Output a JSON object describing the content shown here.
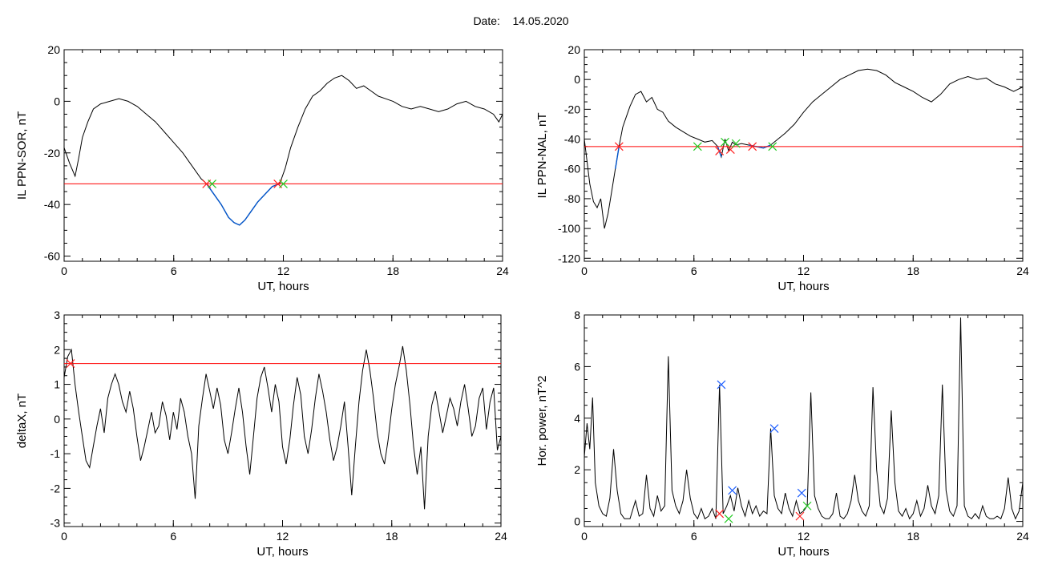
{
  "header": {
    "date_label": "Date:",
    "date_value": "14.05.2020"
  },
  "colors": {
    "trace": "#000000",
    "below_threshold": "#0055cc",
    "threshold": "#ff0000",
    "marker_red": "#ff2020",
    "marker_green": "#22cc22",
    "marker_blue": "#2060ff"
  },
  "chart_data": [
    {
      "id": "sor",
      "type": "line",
      "xlabel": "UT, hours",
      "ylabel": "IL PPN-SOR, nT",
      "xlim": [
        0,
        24
      ],
      "ylim": [
        -62,
        20
      ],
      "xticks": [
        0,
        6,
        12,
        18,
        24
      ],
      "yticks": [
        -60,
        -40,
        -20,
        0,
        20
      ],
      "threshold": -32,
      "series": [
        {
          "x": [
            0,
            0.3,
            0.6,
            0.8,
            1.0,
            1.3,
            1.6,
            2.0,
            2.5,
            3.0,
            3.5,
            4.0,
            4.5,
            5.0,
            5.5,
            6.0,
            6.5,
            7.0,
            7.5,
            7.8,
            8.2,
            8.6,
            9.0,
            9.3,
            9.6,
            9.9,
            10.2,
            10.6,
            11.0,
            11.4,
            11.8,
            12.1,
            12.4,
            12.8,
            13.2,
            13.6,
            14.0,
            14.4,
            14.8,
            15.2,
            15.6,
            16.0,
            16.4,
            16.8,
            17.2,
            17.6,
            18.0,
            18.5,
            19.0,
            19.5,
            20.0,
            20.5,
            21.0,
            21.5,
            22.0,
            22.5,
            23.0,
            23.5,
            23.8,
            24.0
          ],
          "y": [
            -18,
            -24,
            -29,
            -22,
            -14,
            -8,
            -3,
            -1,
            0,
            1,
            0,
            -2,
            -5,
            -8,
            -12,
            -16,
            -20,
            -25,
            -30,
            -32,
            -36,
            -40,
            -45,
            -47,
            -48,
            -46,
            -43,
            -39,
            -36,
            -33,
            -32,
            -26,
            -18,
            -10,
            -3,
            2,
            4,
            7,
            9,
            10,
            8,
            5,
            6,
            4,
            2,
            1,
            0,
            -2,
            -3,
            -2,
            -3,
            -4,
            -3,
            -1,
            0,
            -2,
            -3,
            -5,
            -8,
            -5
          ]
        }
      ],
      "markers": [
        {
          "x": 7.8,
          "y": -32,
          "kind": "x"
        },
        {
          "x": 8.1,
          "y": -32,
          "kind": "x"
        },
        {
          "x": 11.7,
          "y": -32,
          "kind": "x"
        },
        {
          "x": 12.0,
          "y": -32,
          "kind": "x"
        }
      ]
    },
    {
      "id": "nal",
      "type": "line",
      "xlabel": "UT, hours",
      "ylabel": "IL PPN-NAL, nT",
      "xlim": [
        0,
        24
      ],
      "ylim": [
        -122,
        20
      ],
      "xticks": [
        0,
        6,
        12,
        18,
        24
      ],
      "yticks": [
        -120,
        -100,
        -80,
        -60,
        -40,
        -20,
        0,
        20
      ],
      "threshold": -45,
      "series": [
        {
          "x": [
            0,
            0.15,
            0.3,
            0.5,
            0.7,
            0.9,
            1.1,
            1.3,
            1.5,
            1.7,
            1.9,
            2.1,
            2.3,
            2.5,
            2.8,
            3.1,
            3.4,
            3.7,
            4.0,
            4.3,
            4.6,
            5.0,
            5.4,
            5.8,
            6.2,
            6.6,
            7.0,
            7.3,
            7.5,
            7.7,
            7.9,
            8.1,
            8.3,
            8.6,
            9.0,
            9.4,
            9.8,
            10.2,
            10.6,
            11.0,
            11.5,
            12.0,
            12.5,
            13.0,
            13.5,
            14.0,
            14.5,
            15.0,
            15.5,
            16.0,
            16.5,
            17.0,
            17.5,
            18.0,
            18.5,
            19.0,
            19.5,
            20.0,
            20.5,
            21.0,
            21.5,
            22.0,
            22.5,
            23.0,
            23.5,
            24.0
          ],
          "y": [
            -40,
            -55,
            -70,
            -82,
            -86,
            -80,
            -100,
            -90,
            -75,
            -60,
            -45,
            -32,
            -25,
            -18,
            -10,
            -8,
            -15,
            -12,
            -20,
            -22,
            -28,
            -32,
            -35,
            -38,
            -40,
            -42,
            -41,
            -45,
            -52,
            -40,
            -48,
            -42,
            -44,
            -43,
            -44,
            -45,
            -46,
            -44,
            -40,
            -36,
            -30,
            -22,
            -15,
            -10,
            -5,
            0,
            3,
            6,
            7,
            6,
            3,
            -2,
            -5,
            -8,
            -12,
            -15,
            -10,
            -3,
            0,
            2,
            0,
            1,
            -3,
            -5,
            -8,
            -5
          ]
        }
      ],
      "markers": [
        {
          "x": 1.9,
          "y": -45,
          "kind": "x"
        },
        {
          "x": 6.2,
          "y": -45,
          "kind": "x"
        },
        {
          "x": 7.4,
          "y": -48,
          "kind": "x"
        },
        {
          "x": 7.7,
          "y": -42,
          "kind": "x"
        },
        {
          "x": 8.0,
          "y": -47,
          "kind": "x"
        },
        {
          "x": 8.3,
          "y": -43,
          "kind": "x"
        },
        {
          "x": 9.2,
          "y": -45,
          "kind": "x"
        },
        {
          "x": 10.3,
          "y": -45,
          "kind": "x"
        }
      ]
    },
    {
      "id": "deltax",
      "type": "line",
      "xlabel": "UT, hours",
      "ylabel": "deltaX, nT",
      "xlim": [
        0,
        24
      ],
      "ylim": [
        -3.1,
        3
      ],
      "xticks": [
        0,
        6,
        12,
        18,
        24
      ],
      "yticks": [
        -3,
        -2,
        -1,
        0,
        1,
        2,
        3
      ],
      "threshold": 1.6,
      "series": [
        {
          "x": [
            0,
            0.2,
            0.4,
            0.6,
            0.8,
            1.0,
            1.2,
            1.4,
            1.6,
            1.8,
            2.0,
            2.2,
            2.4,
            2.6,
            2.8,
            3.0,
            3.2,
            3.4,
            3.6,
            3.8,
            4.0,
            4.2,
            4.4,
            4.6,
            4.8,
            5.0,
            5.2,
            5.4,
            5.6,
            5.8,
            6.0,
            6.2,
            6.4,
            6.6,
            6.8,
            7.0,
            7.2,
            7.4,
            7.6,
            7.8,
            8.0,
            8.2,
            8.4,
            8.6,
            8.8,
            9.0,
            9.2,
            9.4,
            9.6,
            9.8,
            10.0,
            10.2,
            10.4,
            10.6,
            10.8,
            11.0,
            11.2,
            11.4,
            11.6,
            11.8,
            12.0,
            12.2,
            12.4,
            12.6,
            12.8,
            13.0,
            13.2,
            13.4,
            13.6,
            13.8,
            14.0,
            14.2,
            14.4,
            14.6,
            14.8,
            15.0,
            15.2,
            15.4,
            15.6,
            15.8,
            16.0,
            16.2,
            16.4,
            16.6,
            16.8,
            17.0,
            17.2,
            17.4,
            17.6,
            17.8,
            18.0,
            18.2,
            18.4,
            18.6,
            18.8,
            19.0,
            19.2,
            19.4,
            19.6,
            19.8,
            20.0,
            20.2,
            20.4,
            20.6,
            20.8,
            21.0,
            21.2,
            21.4,
            21.6,
            21.8,
            22.0,
            22.2,
            22.4,
            22.6,
            22.8,
            23.0,
            23.2,
            23.4,
            23.6,
            23.8,
            24.0
          ],
          "y": [
            1.2,
            1.8,
            2.0,
            1.0,
            0.2,
            -0.5,
            -1.2,
            -1.4,
            -0.8,
            -0.2,
            0.3,
            -0.4,
            0.6,
            1.0,
            1.3,
            1.0,
            0.5,
            0.2,
            0.8,
            0.3,
            -0.5,
            -1.2,
            -0.8,
            -0.3,
            0.2,
            -0.4,
            -0.2,
            0.5,
            0.1,
            -0.6,
            0.2,
            -0.3,
            0.6,
            0.2,
            -0.5,
            -1.0,
            -2.3,
            -0.2,
            0.6,
            1.3,
            0.8,
            0.3,
            0.9,
            0.4,
            -0.6,
            -1.0,
            -0.4,
            0.3,
            0.9,
            0.2,
            -0.8,
            -1.6,
            -0.5,
            0.6,
            1.2,
            1.5,
            0.9,
            0.2,
            1.0,
            0.5,
            -0.8,
            -1.3,
            -0.6,
            0.4,
            1.2,
            0.7,
            -0.5,
            -1.0,
            -0.3,
            0.6,
            1.3,
            0.8,
            0.2,
            -0.6,
            -1.2,
            -0.8,
            -0.2,
            0.5,
            -0.8,
            -2.2,
            -0.8,
            0.5,
            1.4,
            2.0,
            1.4,
            0.6,
            -0.4,
            -1.0,
            -1.3,
            -0.6,
            0.3,
            1.0,
            1.5,
            2.1,
            1.4,
            0.4,
            -0.8,
            -1.6,
            -0.8,
            -2.6,
            -0.5,
            0.4,
            0.8,
            0.2,
            -0.4,
            0.1,
            0.6,
            0.3,
            -0.2,
            0.5,
            1.0,
            0.3,
            -0.5,
            -0.2,
            0.6,
            0.9,
            -0.3,
            0.5,
            0.9,
            -0.9,
            -0.5
          ]
        }
      ],
      "markers": [
        {
          "x": 0.35,
          "y": 1.6,
          "kind": "x"
        }
      ]
    },
    {
      "id": "hpower",
      "type": "line",
      "xlabel": "UT, hours",
      "ylabel": "Hor. power, nT^2",
      "xlim": [
        0,
        24
      ],
      "ylim": [
        -0.2,
        8
      ],
      "xticks": [
        0,
        6,
        12,
        18,
        24
      ],
      "yticks": [
        0,
        2,
        4,
        6,
        8
      ],
      "threshold": null,
      "series": [
        {
          "x": [
            0,
            0.15,
            0.3,
            0.45,
            0.6,
            0.8,
            1.0,
            1.2,
            1.4,
            1.6,
            1.8,
            2.0,
            2.2,
            2.5,
            2.8,
            3.0,
            3.2,
            3.4,
            3.6,
            3.8,
            4.0,
            4.2,
            4.4,
            4.6,
            4.8,
            5.0,
            5.2,
            5.4,
            5.6,
            5.8,
            6.0,
            6.2,
            6.4,
            6.6,
            6.8,
            7.0,
            7.2,
            7.4,
            7.6,
            7.8,
            8.0,
            8.2,
            8.4,
            8.6,
            8.8,
            9.0,
            9.2,
            9.4,
            9.6,
            9.8,
            10.0,
            10.2,
            10.4,
            10.6,
            10.8,
            11.0,
            11.2,
            11.4,
            11.6,
            11.8,
            12.0,
            12.2,
            12.4,
            12.6,
            12.8,
            13.0,
            13.2,
            13.4,
            13.6,
            13.8,
            14.0,
            14.2,
            14.4,
            14.6,
            14.8,
            15.0,
            15.2,
            15.4,
            15.6,
            15.8,
            16.0,
            16.2,
            16.4,
            16.6,
            16.8,
            17.0,
            17.2,
            17.4,
            17.6,
            17.8,
            18.0,
            18.2,
            18.4,
            18.6,
            18.8,
            19.0,
            19.2,
            19.4,
            19.6,
            19.8,
            20.0,
            20.2,
            20.4,
            20.6,
            20.8,
            21.0,
            21.2,
            21.4,
            21.6,
            21.8,
            22.0,
            22.2,
            22.4,
            22.6,
            22.8,
            23.0,
            23.2,
            23.4,
            23.6,
            23.8,
            24.0
          ],
          "y": [
            2.5,
            3.8,
            2.8,
            4.8,
            1.5,
            0.6,
            0.3,
            0.2,
            0.9,
            2.8,
            1.2,
            0.3,
            0.1,
            0.1,
            0.8,
            0.2,
            0.3,
            1.8,
            0.5,
            0.2,
            1.0,
            0.4,
            0.6,
            6.4,
            1.2,
            0.6,
            0.3,
            0.8,
            2.0,
            0.9,
            0.3,
            0.1,
            0.5,
            0.1,
            0.2,
            0.5,
            0.1,
            5.3,
            0.3,
            0.6,
            1.0,
            0.4,
            1.3,
            0.6,
            0.2,
            0.8,
            0.3,
            0.6,
            0.2,
            0.4,
            0.3,
            3.6,
            1.0,
            0.5,
            0.3,
            1.1,
            0.5,
            0.2,
            0.8,
            0.3,
            0.4,
            0.6,
            5.0,
            1.0,
            0.5,
            0.2,
            0.1,
            0.1,
            0.3,
            1.1,
            0.2,
            0.1,
            0.3,
            0.8,
            1.8,
            0.8,
            0.4,
            0.2,
            0.6,
            5.2,
            2.0,
            0.6,
            0.3,
            0.9,
            4.3,
            1.5,
            0.4,
            0.2,
            0.5,
            0.1,
            0.3,
            0.8,
            0.2,
            0.5,
            1.4,
            0.6,
            0.3,
            1.0,
            5.3,
            1.2,
            0.4,
            0.2,
            0.6,
            7.9,
            0.6,
            0.2,
            0.1,
            0.3,
            0.1,
            0.6,
            0.2,
            0.1,
            0.1,
            0.2,
            0.1,
            0.5,
            1.7,
            0.5,
            0.1,
            0.4,
            1.5
          ]
        }
      ],
      "markers": [
        {
          "x": 7.5,
          "y": 5.3,
          "kind": "x"
        },
        {
          "x": 10.4,
          "y": 3.6,
          "kind": "x"
        },
        {
          "x": 8.1,
          "y": 1.2,
          "kind": "x"
        },
        {
          "x": 11.9,
          "y": 1.1,
          "kind": "x"
        },
        {
          "x": 7.4,
          "y": 0.3,
          "kind": "x"
        },
        {
          "x": 7.9,
          "y": 0.1,
          "kind": "x"
        },
        {
          "x": 11.8,
          "y": 0.2,
          "kind": "x"
        },
        {
          "x": 12.2,
          "y": 0.6,
          "kind": "x"
        }
      ]
    }
  ]
}
